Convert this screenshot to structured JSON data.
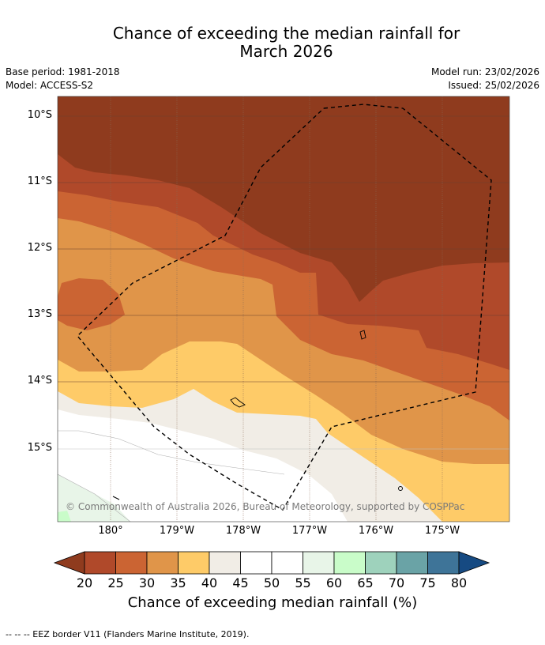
{
  "title_line1": "Chance of exceeding the median rainfall for",
  "title_line2": "March 2026",
  "base_period": "Base period: 1981-2018",
  "model": "Model: ACCESS-S2",
  "model_run": "Model run: 23/02/2026",
  "issued": "Issued: 25/02/2026",
  "lat_labels": [
    "10°S",
    "11°S",
    "12°S",
    "13°S",
    "14°S",
    "15°S"
  ],
  "lon_labels": [
    "180°",
    "179°W",
    "178°W",
    "177°W",
    "176°W",
    "175°W"
  ],
  "attribution": "© Commonwealth of Australia 2026, Bureau of Meteorology, supported by COSPPac",
  "colorbar": {
    "ticks": [
      "20",
      "25",
      "30",
      "35",
      "40",
      "45",
      "50",
      "55",
      "60",
      "65",
      "70",
      "75",
      "80"
    ],
    "colors": [
      "#8f3b1e",
      "#b0492a",
      "#cb6433",
      "#e09549",
      "#fecb68",
      "#f1ede6",
      "#ffffff",
      "#ffffff",
      "#e8f5e8",
      "#c9fcc9",
      "#9ed2bc",
      "#6aa3a6",
      "#3e7498",
      "#164a82"
    ],
    "title": "Chance of exceeding median rainfall (%)"
  },
  "footer": "--  --  -- EEZ border V11 (Flanders Marine Institute, 2019)."
}
